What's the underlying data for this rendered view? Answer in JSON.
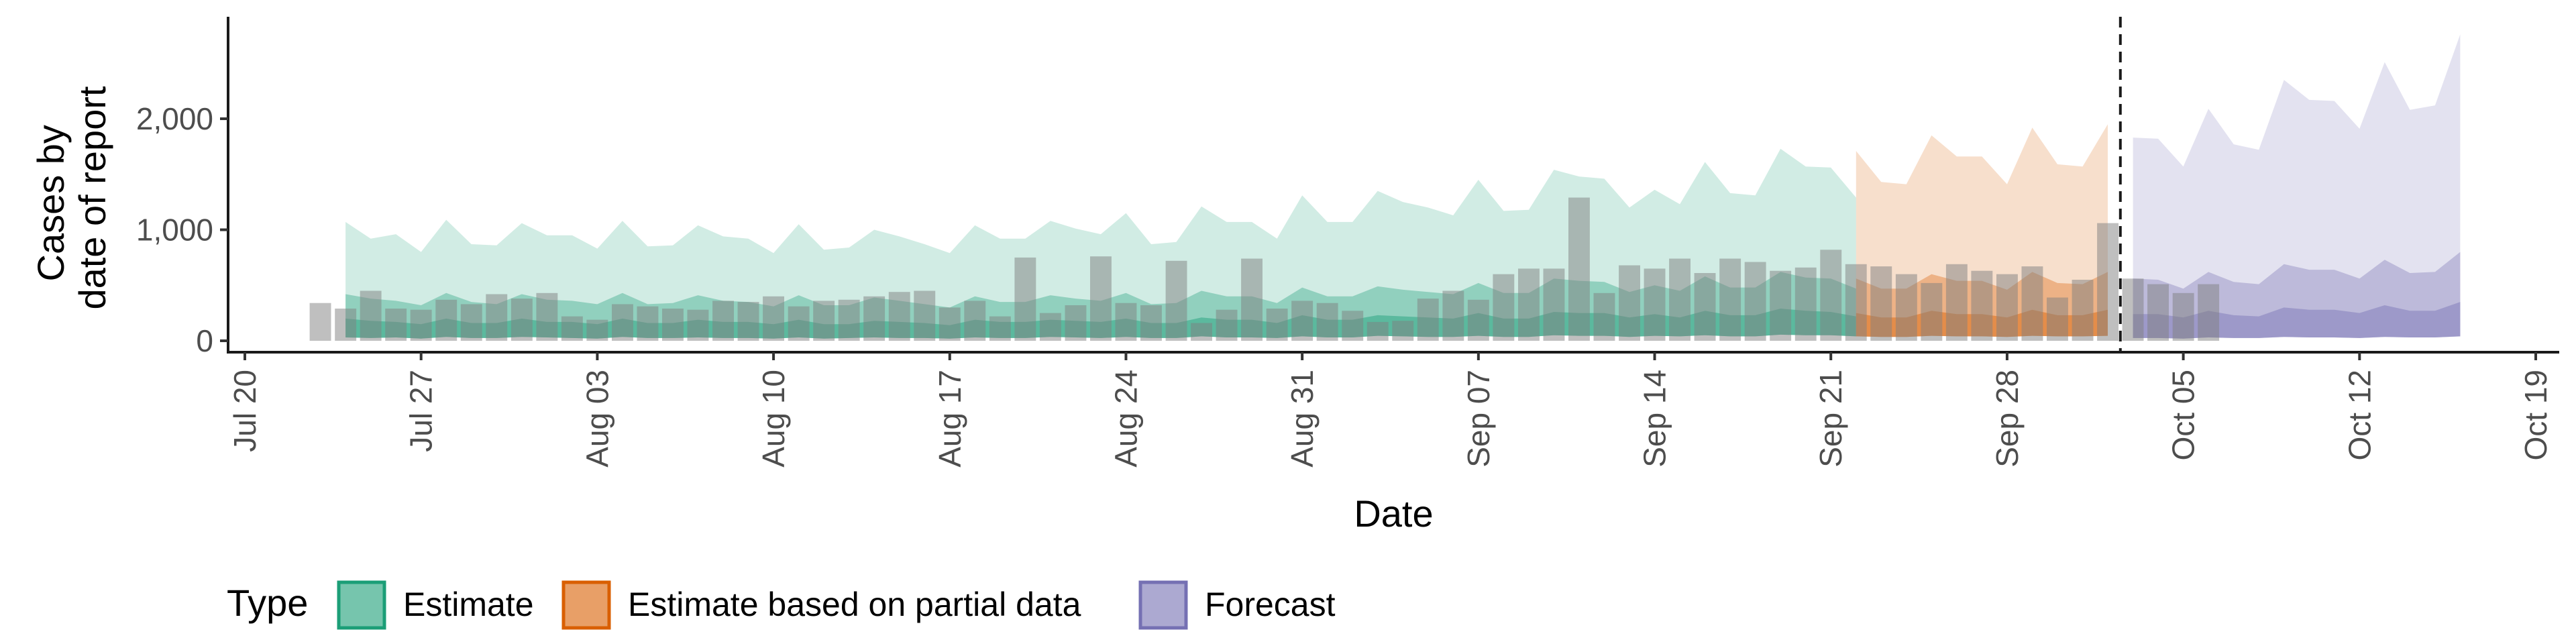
{
  "chart_data": {
    "type": "area",
    "xlabel": "Date",
    "ylabel": [
      "Cases by",
      "date of report"
    ],
    "ylim": [
      0,
      2900
    ],
    "y_ticks": [
      0,
      1000,
      2000
    ],
    "y_tick_labels": [
      "0",
      "1,000",
      "2,000"
    ],
    "x_ticks": [
      "2020-07-20",
      "2020-07-27",
      "2020-08-03",
      "2020-08-10",
      "2020-08-17",
      "2020-08-24",
      "2020-08-31",
      "2020-09-07",
      "2020-09-14",
      "2020-09-21",
      "2020-09-28",
      "2020-10-05",
      "2020-10-12",
      "2020-10-19"
    ],
    "x_tick_labels": [
      "Jul 20",
      "Jul 27",
      "Aug 03",
      "Aug 10",
      "Aug 17",
      "Aug 24",
      "Aug 31",
      "Sep 07",
      "Sep 14",
      "Sep 21",
      "Sep 28",
      "Oct 05",
      "Oct 12",
      "Oct 19"
    ],
    "xlim": [
      "2020-07-20",
      "2020-10-19"
    ],
    "forecast_date": "2020-10-02",
    "legend": {
      "title": "Type",
      "position": "bottom",
      "entries": [
        {
          "label": "Estimate",
          "fill": "#1b9e77",
          "stroke": "#1b9e77"
        },
        {
          "label": "Estimate based on partial data",
          "fill": "#d95f02",
          "stroke": "#d95f02"
        },
        {
          "label": "Forecast",
          "fill": "#7570b3",
          "stroke": "#7570b3"
        }
      ]
    },
    "observed_cases": {
      "start": "2020-07-23",
      "values": [
        340,
        290,
        450,
        290,
        280,
        370,
        330,
        420,
        380,
        430,
        220,
        190,
        330,
        310,
        290,
        280,
        360,
        350,
        400,
        310,
        360,
        370,
        400,
        440,
        450,
        300,
        360,
        220,
        750,
        250,
        320,
        760,
        340,
        320,
        720,
        160,
        280,
        740,
        290,
        360,
        340,
        270,
        170,
        180,
        380,
        450,
        370,
        600,
        650,
        650,
        1290,
        430,
        680,
        650,
        740,
        610,
        740,
        710,
        630,
        660,
        820,
        690,
        670,
        600,
        520,
        690,
        630,
        600,
        670,
        390,
        550,
        1060,
        560,
        510,
        430,
        510
      ]
    },
    "series": [
      {
        "name": "Estimate",
        "start": "2020-07-24",
        "upper90": [
          1070,
          920,
          960,
          800,
          1090,
          870,
          860,
          1060,
          950,
          950,
          830,
          1080,
          850,
          860,
          1040,
          940,
          920,
          790,
          1050,
          820,
          840,
          1000,
          940,
          870,
          790,
          1040,
          920,
          920,
          1080,
          1010,
          960,
          1150,
          870,
          890,
          1210,
          1070,
          1070,
          920,
          1310,
          1070,
          1070,
          1350,
          1250,
          1200,
          1130,
          1450,
          1170,
          1180,
          1540,
          1480,
          1460,
          1200,
          1360,
          1230,
          1610,
          1330,
          1310,
          1730,
          1570,
          1560,
          1290
        ],
        "upper50": [
          420,
          380,
          360,
          320,
          430,
          350,
          330,
          420,
          370,
          360,
          330,
          430,
          330,
          340,
          410,
          360,
          350,
          310,
          410,
          320,
          320,
          390,
          360,
          330,
          300,
          400,
          350,
          350,
          410,
          380,
          360,
          430,
          330,
          340,
          450,
          400,
          400,
          340,
          480,
          400,
          400,
          490,
          460,
          440,
          420,
          520,
          430,
          430,
          560,
          540,
          530,
          440,
          500,
          450,
          580,
          480,
          480,
          620,
          570,
          560,
          470
        ],
        "upper20": [
          200,
          180,
          170,
          150,
          200,
          160,
          160,
          200,
          170,
          170,
          150,
          200,
          160,
          160,
          190,
          170,
          170,
          150,
          190,
          150,
          150,
          180,
          170,
          160,
          140,
          190,
          170,
          170,
          190,
          180,
          170,
          200,
          160,
          160,
          210,
          190,
          190,
          160,
          230,
          190,
          190,
          230,
          220,
          210,
          200,
          250,
          200,
          200,
          260,
          250,
          250,
          210,
          240,
          210,
          270,
          230,
          230,
          290,
          270,
          260,
          220
        ],
        "lower": [
          30,
          25,
          30,
          20,
          35,
          25,
          25,
          35,
          30,
          25,
          20,
          35,
          25,
          25,
          30,
          25,
          25,
          20,
          30,
          20,
          25,
          30,
          25,
          25,
          20,
          30,
          25,
          25,
          35,
          30,
          25,
          35,
          25,
          25,
          40,
          30,
          30,
          25,
          40,
          30,
          30,
          45,
          40,
          35,
          35,
          45,
          35,
          35,
          50,
          45,
          45,
          35,
          45,
          40,
          50,
          40,
          40,
          55,
          50,
          50,
          40
        ]
      },
      {
        "name": "Estimate based on partial data",
        "start": "2020-09-22",
        "upper90": [
          1710,
          1430,
          1410,
          1850,
          1660,
          1660,
          1410,
          1920,
          1590,
          1570,
          1950
        ],
        "upper50": [
          560,
          470,
          470,
          600,
          540,
          540,
          460,
          620,
          520,
          510,
          620
        ],
        "upper20": [
          250,
          210,
          210,
          270,
          240,
          240,
          210,
          280,
          230,
          230,
          280
        ],
        "lower": [
          40,
          35,
          35,
          45,
          40,
          40,
          35,
          45,
          40,
          40,
          45
        ]
      },
      {
        "name": "Forecast",
        "start": "2020-10-03",
        "upper90": [
          1830,
          1820,
          1570,
          2090,
          1770,
          1720,
          2350,
          2170,
          2160,
          1910,
          2510,
          2080,
          2120,
          2760
        ],
        "upper50": [
          560,
          550,
          470,
          620,
          530,
          510,
          690,
          640,
          640,
          560,
          730,
          610,
          620,
          800
        ],
        "upper20": [
          240,
          240,
          210,
          270,
          230,
          220,
          300,
          280,
          280,
          250,
          320,
          270,
          270,
          350
        ],
        "lower": [
          25,
          25,
          20,
          30,
          25,
          25,
          35,
          30,
          30,
          25,
          35,
          30,
          30,
          40
        ]
      }
    ]
  }
}
